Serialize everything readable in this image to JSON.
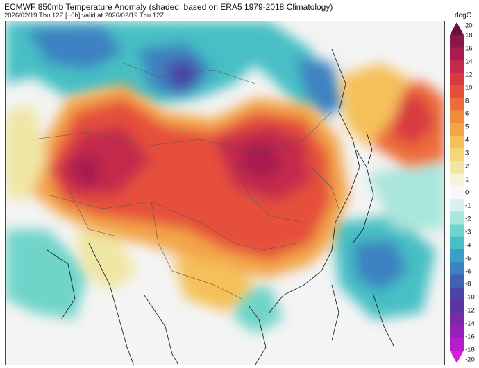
{
  "header": {
    "title": "ECMWF 850mb Temperature Anomaly (shaded, based on ERA5 1979-2018 Climatology)",
    "subtitle": "2026/02/19 Thu 12Z [+0h] valid at 2026/02/19 Thu 12Z"
  },
  "colorbar": {
    "unit": "degC",
    "labels": [
      "20",
      "18",
      "16",
      "14",
      "12",
      "10",
      "8",
      "6",
      "5",
      "4",
      "3",
      "2",
      "1",
      "0",
      "-1",
      "-2",
      "-3",
      "-4",
      "-5",
      "-6",
      "-8",
      "-10",
      "-12",
      "-14",
      "-16",
      "-18",
      "-20"
    ],
    "colors": [
      "#6a0f3c",
      "#8a1748",
      "#a81c4f",
      "#c42a4b",
      "#d83a3f",
      "#e5503a",
      "#ec6d3b",
      "#f08a3d",
      "#f3a548",
      "#f5c05a",
      "#f4d77a",
      "#f0e6a4",
      "#f6f3dc",
      "#f7f7f7",
      "#d9f1ee",
      "#a9e6dc",
      "#6fd4c9",
      "#47bfc4",
      "#3a9fc6",
      "#3c82c1",
      "#4261b3",
      "#4a44a7",
      "#5d34a3",
      "#7a2aa8",
      "#9621b6",
      "#b61ec9",
      "#d81ddf"
    ]
  },
  "map": {
    "region": "East Asia",
    "colors": {
      "warm_core": "#b81f3c",
      "warm": "#e1443b",
      "orange": "#f08a3d",
      "yellow": "#f5cf68",
      "neutral": "#f7f7f7",
      "cool_light": "#a9e6dc",
      "cool": "#47bfc4",
      "cold": "#3c82c1",
      "very_cold": "#4a44a7",
      "coast": "#222222",
      "border": "#555555"
    }
  }
}
